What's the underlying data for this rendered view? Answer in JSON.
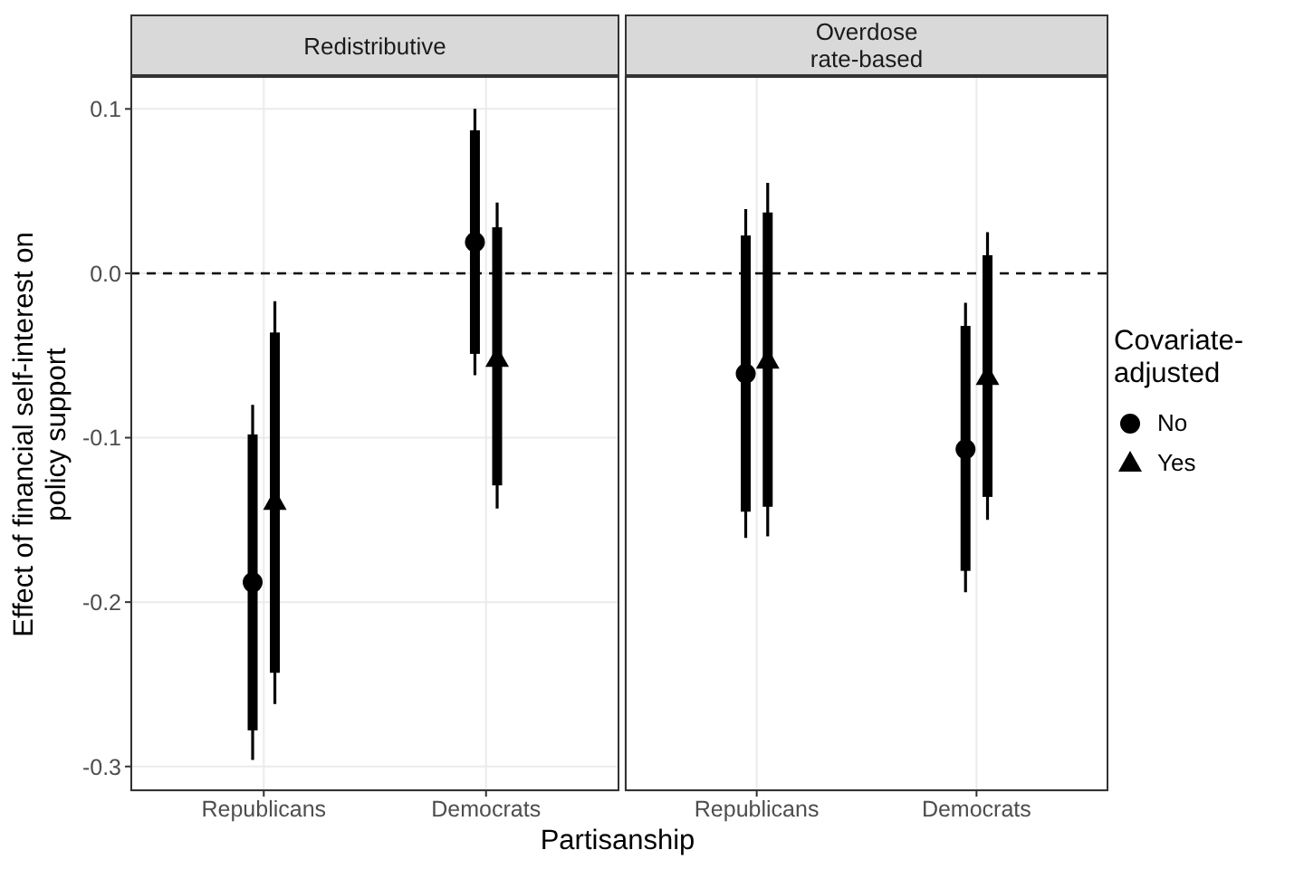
{
  "chart_data": [
    {
      "type": "scatter",
      "title": "Redistributive",
      "xlabel": "Partisanship",
      "ylabel": "Effect of financial self-interest on policy support",
      "categories": [
        "Republicans",
        "Democrats"
      ],
      "ylim": [
        -0.315,
        0.12
      ],
      "yticks": [
        -0.3,
        -0.2,
        -0.1,
        {
          "value": 0,
          "label": "0.0"
        },
        0.1
      ],
      "grid": true,
      "ref_lines": [
        {
          "axis": "y",
          "value": 0,
          "line_style": "dashed",
          "color": "#000000"
        }
      ],
      "series": [
        {
          "type": "bar",
          "color": "#000000",
          "base": [
            -0.278,
            -0.049
          ],
          "values": [
            0.18,
            0.136
          ]
        },
        {
          "type": "bar",
          "color": "#000000",
          "base": [
            -0.243,
            -0.129
          ],
          "values": [
            0.207,
            0.157
          ]
        },
        {
          "marker": "circle",
          "color": "#000000",
          "values": [
            -0.188,
            0.019
          ],
          "errors": [
            [
              -0.296,
              -0.08
            ],
            [
              -0.062,
              0.1
            ]
          ]
        },
        {
          "marker": "triangle",
          "color": "#000000",
          "values": [
            -0.139,
            -0.052
          ],
          "errors": [
            [
              -0.262,
              -0.017
            ],
            [
              -0.143,
              0.043
            ]
          ]
        }
      ]
    },
    {
      "type": "scatter",
      "title": "Overdose\nrate-based",
      "categories": [
        "Republicans",
        "Democrats"
      ],
      "ylim": [
        -0.315,
        0.12
      ],
      "yticks": [
        -0.3,
        -0.2,
        -0.1,
        0,
        0.1
      ],
      "grid": true,
      "tick_labels": "x",
      "legend": "right",
      "legend_title": "Covariate-adjusted",
      "ref_lines": [
        {
          "axis": "y",
          "value": 0,
          "line_style": "dashed",
          "color": "#000000"
        }
      ],
      "series": [
        {
          "type": "bar",
          "color": "#000000",
          "base": [
            -0.145,
            -0.181
          ],
          "values": [
            0.168,
            0.149
          ]
        },
        {
          "type": "bar",
          "color": "#000000",
          "base": [
            -0.142,
            -0.136
          ],
          "values": [
            0.179,
            0.147
          ]
        },
        {
          "name": "No",
          "marker": "circle",
          "color": "#000000",
          "values": [
            -0.061,
            -0.107
          ],
          "errors": [
            [
              -0.161,
              0.039
            ],
            [
              -0.194,
              -0.018
            ]
          ]
        },
        {
          "name": "Yes",
          "marker": "triangle",
          "color": "#000000",
          "values": [
            -0.053,
            -0.063
          ],
          "errors": [
            [
              -0.16,
              0.055
            ],
            [
              -0.15,
              0.025
            ]
          ]
        }
      ]
    }
  ]
}
